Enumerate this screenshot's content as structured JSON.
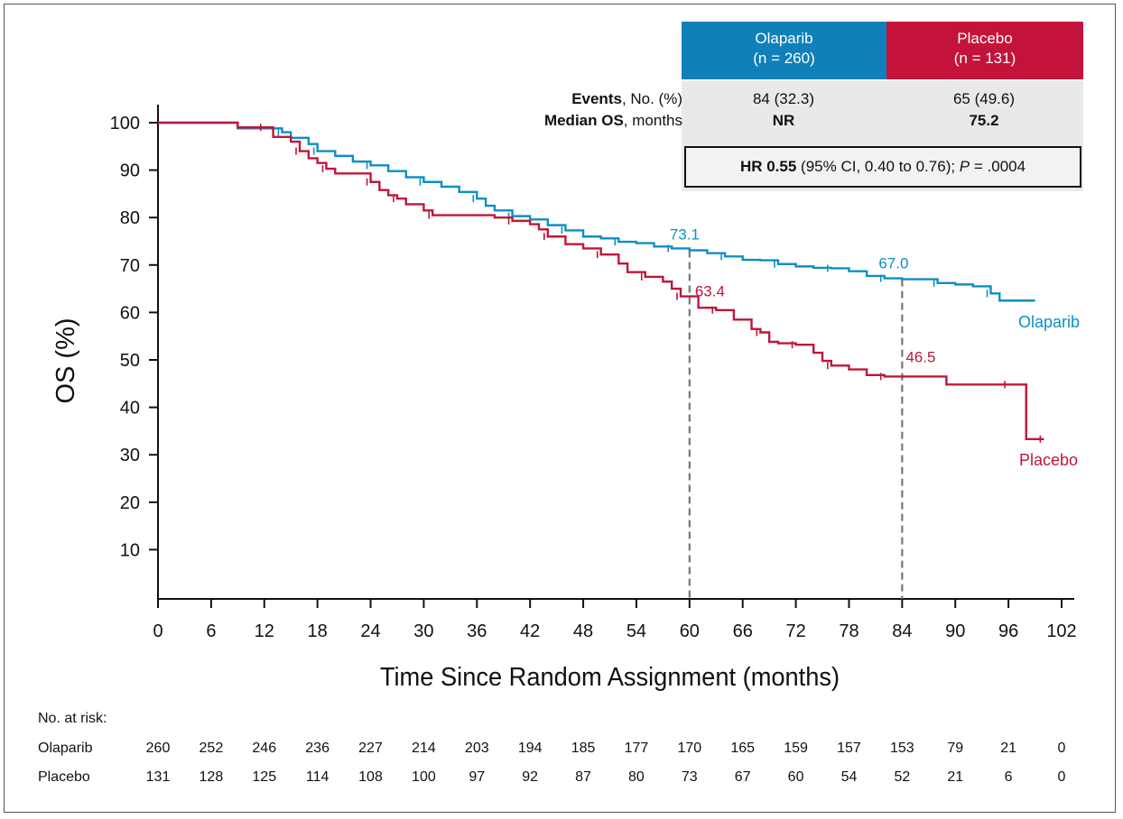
{
  "chart_data": {
    "type": "line",
    "title": "",
    "xlabel": "Time Since Random Assignment (months)",
    "ylabel": "OS (%)",
    "xlim": [
      0,
      102
    ],
    "ylim": [
      0,
      100
    ],
    "x_ticks": [
      0,
      6,
      12,
      18,
      24,
      30,
      36,
      42,
      48,
      54,
      60,
      66,
      72,
      78,
      84,
      90,
      96,
      102
    ],
    "y_ticks": [
      10,
      20,
      30,
      40,
      50,
      60,
      70,
      80,
      90,
      100
    ],
    "colors": {
      "olaparib": "#0d8fc4",
      "placebo": "#c0163a",
      "header_olaparib": "#0f80b9",
      "header_placebo": "#c4133a"
    },
    "series": [
      {
        "name": "Olaparib",
        "label": "Olaparib",
        "points": [
          [
            0,
            100
          ],
          [
            8.5,
            100
          ],
          [
            9,
            98.8
          ],
          [
            14,
            98
          ],
          [
            15,
            96.8
          ],
          [
            17,
            95.5
          ],
          [
            18,
            94
          ],
          [
            20,
            93
          ],
          [
            22,
            91.8
          ],
          [
            24,
            91
          ],
          [
            26,
            89.8
          ],
          [
            28,
            88.5
          ],
          [
            30,
            87.5
          ],
          [
            32,
            86.5
          ],
          [
            34,
            85.4
          ],
          [
            36,
            84
          ],
          [
            37,
            82.5
          ],
          [
            38,
            81.5
          ],
          [
            40,
            80.3
          ],
          [
            42,
            79.6
          ],
          [
            44,
            78.4
          ],
          [
            46,
            77.3
          ],
          [
            48,
            76
          ],
          [
            50,
            75.6
          ],
          [
            52,
            74.9
          ],
          [
            54,
            74.6
          ],
          [
            56,
            73.9
          ],
          [
            58,
            73.5
          ],
          [
            60,
            73.1
          ],
          [
            62,
            72.5
          ],
          [
            64,
            71.8
          ],
          [
            66,
            71.1
          ],
          [
            68,
            71
          ],
          [
            70,
            70.2
          ],
          [
            72,
            69.7
          ],
          [
            74,
            69.4
          ],
          [
            76,
            69.3
          ],
          [
            78,
            68.7
          ],
          [
            80,
            67.7
          ],
          [
            82,
            67.2
          ],
          [
            84,
            67
          ],
          [
            86,
            67
          ],
          [
            88,
            66.2
          ],
          [
            90,
            65.9
          ],
          [
            92,
            65.5
          ],
          [
            94,
            64
          ],
          [
            95,
            62.5
          ],
          [
            99,
            62.5
          ]
        ]
      },
      {
        "name": "Placebo",
        "label": "Placebo",
        "points": [
          [
            0,
            100
          ],
          [
            8,
            100
          ],
          [
            9,
            99
          ],
          [
            12,
            99
          ],
          [
            13,
            97
          ],
          [
            15,
            96
          ],
          [
            16,
            94
          ],
          [
            17,
            92.5
          ],
          [
            18,
            91.5
          ],
          [
            19,
            90.3
          ],
          [
            20,
            89.3
          ],
          [
            22,
            89.3
          ],
          [
            24,
            87.5
          ],
          [
            25,
            85.8
          ],
          [
            26,
            84.7
          ],
          [
            27,
            84
          ],
          [
            28,
            82.8
          ],
          [
            30,
            81.5
          ],
          [
            31,
            80.5
          ],
          [
            34,
            80.5
          ],
          [
            38,
            80
          ],
          [
            40,
            79.3
          ],
          [
            42,
            78.6
          ],
          [
            43,
            77.5
          ],
          [
            44,
            76
          ],
          [
            46,
            74.4
          ],
          [
            48,
            73.5
          ],
          [
            50,
            72.2
          ],
          [
            52,
            70.3
          ],
          [
            53,
            68.5
          ],
          [
            55,
            67.5
          ],
          [
            57,
            66.5
          ],
          [
            58,
            65
          ],
          [
            59,
            63.4
          ],
          [
            60,
            63.4
          ],
          [
            61,
            61
          ],
          [
            63,
            60.5
          ],
          [
            65,
            58.5
          ],
          [
            67,
            56.5
          ],
          [
            68,
            55.8
          ],
          [
            69,
            53.8
          ],
          [
            70,
            53.5
          ],
          [
            72,
            53.2
          ],
          [
            74,
            51.5
          ],
          [
            75,
            49.8
          ],
          [
            76,
            48.8
          ],
          [
            78,
            48
          ],
          [
            80,
            46.8
          ],
          [
            82,
            46.5
          ],
          [
            88,
            46.5
          ],
          [
            89,
            44.8
          ],
          [
            96,
            44.8
          ],
          [
            98,
            44.8
          ],
          [
            98,
            33.3
          ],
          [
            100,
            33.3
          ]
        ]
      }
    ],
    "annotations": [
      {
        "x": 60,
        "y": 73.1,
        "text": "73.1",
        "series": "olaparib"
      },
      {
        "x": 60,
        "y": 63.4,
        "text": "63.4",
        "series": "placebo"
      },
      {
        "x": 84,
        "y": 67.0,
        "text": "67.0",
        "series": "olaparib"
      },
      {
        "x": 84,
        "y": 46.5,
        "text": "46.5",
        "series": "placebo"
      }
    ],
    "reference_lines_x": [
      60,
      84
    ]
  },
  "stats": {
    "olaparib_header": "Olaparib",
    "olaparib_n": "(n = 260)",
    "placebo_header": "Placebo",
    "placebo_n": "(n = 131)",
    "events_label_bold": "Events",
    "events_label_rest": ", No. (%)",
    "median_label_bold": "Median OS",
    "median_label_rest": ", months",
    "olaparib_events": "84 (32.3)",
    "placebo_events": "65 (49.6)",
    "olaparib_median": "NR",
    "placebo_median": "75.2",
    "hr_bold": "HR 0.55",
    "hr_rest": " (95% CI, 0.40 to 0.76); ",
    "hr_p_italic": "P",
    "hr_p_value": " = .0004"
  },
  "at_risk": {
    "title": "No. at risk:",
    "olaparib_label": "Olaparib",
    "placebo_label": "Placebo",
    "olaparib": [
      "260",
      "252",
      "246",
      "236",
      "227",
      "214",
      "203",
      "194",
      "185",
      "177",
      "170",
      "165",
      "159",
      "157",
      "153",
      "79",
      "21",
      "0"
    ],
    "placebo": [
      "131",
      "128",
      "125",
      "114",
      "108",
      "100",
      "97",
      "92",
      "87",
      "80",
      "73",
      "67",
      "60",
      "54",
      "52",
      "21",
      "6",
      "0"
    ]
  }
}
